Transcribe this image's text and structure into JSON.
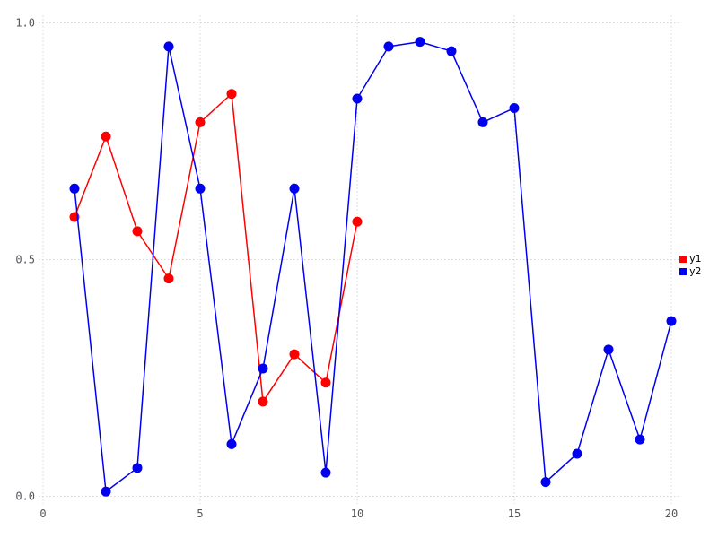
{
  "chart_data": {
    "type": "line",
    "title": "",
    "xlabel": "",
    "ylabel": "",
    "xlim": [
      0,
      20
    ],
    "ylim": [
      0,
      1
    ],
    "grid": true,
    "grid_color": "#d4d4de",
    "tick_label_color": "#55555f",
    "legend_position": "right",
    "xticks": [
      0,
      5,
      10,
      15,
      20
    ],
    "xtick_labels": [
      "0",
      "5",
      "10",
      "15",
      "20"
    ],
    "yticks": [
      0,
      0.5,
      1
    ],
    "ytick_labels": [
      "0.0",
      "0.5",
      "1.0"
    ],
    "series": [
      {
        "name": "y1",
        "color": "#ff0000",
        "x": [
          1,
          2,
          3,
          4,
          5,
          6,
          7,
          8,
          9,
          10
        ],
        "values": [
          0.59,
          0.76,
          0.56,
          0.46,
          0.79,
          0.85,
          0.2,
          0.3,
          0.24,
          0.58
        ]
      },
      {
        "name": "y2",
        "color": "#0000f0",
        "x": [
          1,
          2,
          3,
          4,
          5,
          6,
          7,
          8,
          9,
          10,
          11,
          12,
          13,
          14,
          15,
          16,
          17,
          18,
          19,
          20
        ],
        "values": [
          0.65,
          0.01,
          0.06,
          0.95,
          0.65,
          0.11,
          0.27,
          0.65,
          0.05,
          0.84,
          0.95,
          0.96,
          0.94,
          0.79,
          0.82,
          0.03,
          0.09,
          0.31,
          0.12,
          0.37
        ]
      }
    ]
  }
}
